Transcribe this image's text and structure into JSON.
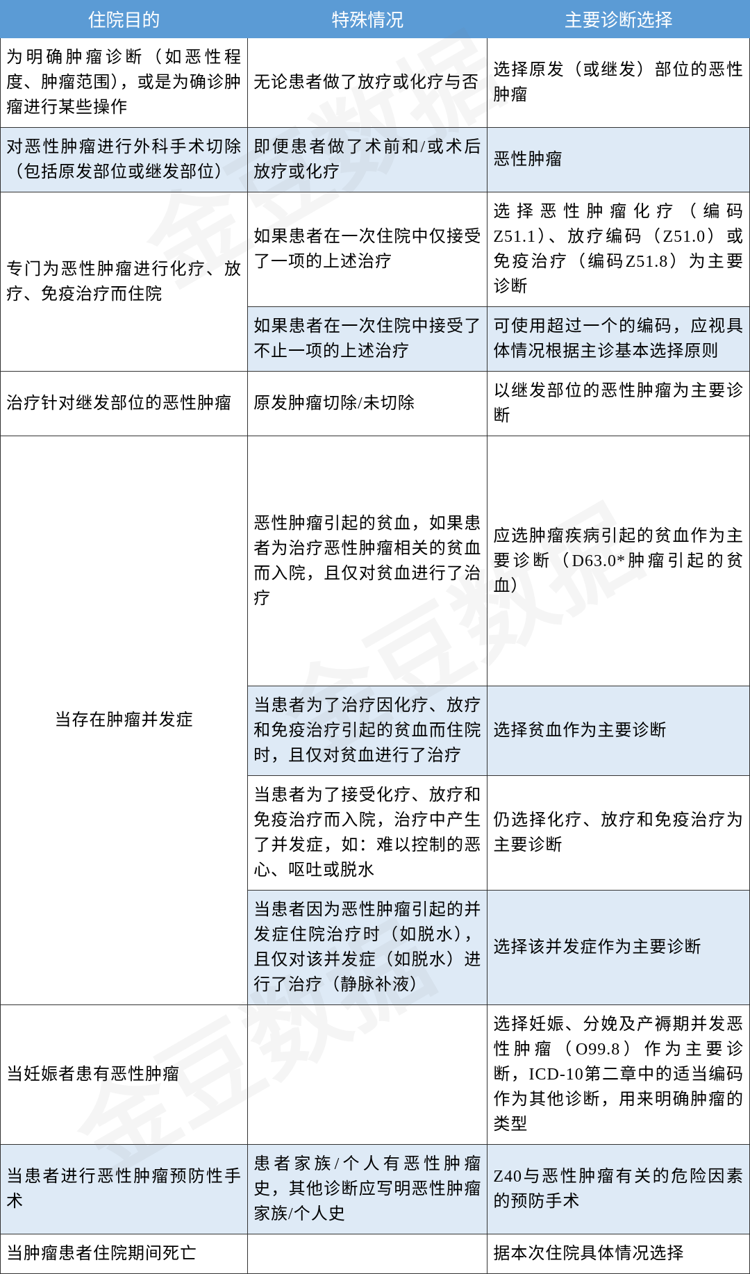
{
  "watermark": "金豆数据",
  "colors": {
    "header_bg": "#5b9bd5",
    "header_text": "#ffffff",
    "shaded_bg": "#deeaf6",
    "plain_bg": "#ffffff",
    "border": "#333333",
    "text": "#000000",
    "watermark": "rgba(128,128,128,0.08)"
  },
  "headers": {
    "col1": "住院目的",
    "col2": "特殊情况",
    "col3": "主要诊断选择"
  },
  "rows": [
    {
      "shade": "plain",
      "c1": "为明确肿瘤诊断（如恶性程度、肿瘤范围），或是为确诊肿瘤进行某些操作",
      "c2": "无论患者做了放疗或化疗与否",
      "c3": "选择原发（或继发）部位的恶性肿瘤"
    },
    {
      "shade": "shaded",
      "c1": "对恶性肿瘤进行外科手术切除（包括原发部位或继发部位）",
      "c2": "即便患者做了术前和/或术后放疗或化疗",
      "c3": "恶性肿瘤"
    },
    {
      "shade": "plain",
      "rowspan1": 2,
      "c1": "专门为恶性肿瘤进行化疗、放疗、免疫治疗而住院",
      "c2": "如果患者在一次住院中仅接受了一项的上述治疗",
      "c3": "选择恶性肿瘤化疗（编码Z51.1）、放疗编码（Z51.0）或免疫治疗（编码Z51.8）为主要诊断"
    },
    {
      "shade": "shaded",
      "c2": "如果患者在一次住院中接受了不止一项的上述治疗",
      "c3": "可使用超过一个的编码，应视具体情况根据主诊基本选择原则"
    },
    {
      "shade": "plain",
      "c1": "治疗针对继发部位的恶性肿瘤",
      "c2": "原发肿瘤切除/未切除",
      "c3": "以继发部位的恶性肿瘤为主要诊断"
    },
    {
      "shade": "plain",
      "rowspan1": 4,
      "c1": "当存在肿瘤并发症",
      "c1_align": "center",
      "c2": "恶性肿瘤引起的贫血，如果患者为治疗恶性肿瘤相关的贫血而入院，且仅对贫血进行了治疗",
      "c3": "应选肿瘤疾病引起的贫血作为主要诊断（D63.0*肿瘤引起的贫血）",
      "tall": true
    },
    {
      "shade": "shaded",
      "c2": "当患者为了治疗因化疗、放疗和免疫治疗引起的贫血而住院时，且仅对贫血进行了治疗",
      "c3": "选择贫血作为主要诊断"
    },
    {
      "shade": "plain",
      "c2": "当患者为了接受化疗、放疗和免疫治疗而入院，治疗中产生了并发症，如：难以控制的恶心、呕吐或脱水",
      "c3": "仍选择化疗、放疗和免疫治疗为主要诊断"
    },
    {
      "shade": "shaded",
      "c2": "当患者因为恶性肿瘤引起的并发症住院治疗时（如脱水），且仅对该并发症（如脱水）进行了治疗（静脉补液）",
      "c3": "选择该并发症作为主要诊断"
    },
    {
      "shade": "plain",
      "c1": "当妊娠者患有恶性肿瘤",
      "c2": "",
      "c3": "选择妊娠、分娩及产褥期并发恶性肿瘤（O99.8）作为主要诊断，ICD-10第二章中的适当编码作为其他诊断，用来明确肿瘤的类型"
    },
    {
      "shade": "shaded",
      "c1": "当患者进行恶性肿瘤预防性手术",
      "c2": "患者家族/个人有恶性肿瘤史，其他诊断应写明恶性肿瘤家族/个人史",
      "c3": "Z40与恶性肿瘤有关的危险因素的预防手术"
    },
    {
      "shade": "plain",
      "c1": "当肿瘤患者住院期间死亡",
      "c2": "",
      "c3": "据本次住院具体情况选择"
    }
  ]
}
